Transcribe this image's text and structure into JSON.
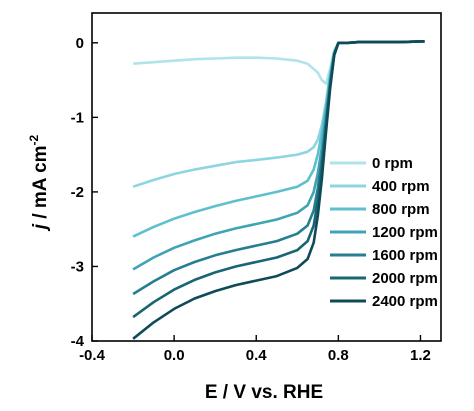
{
  "chart_data": {
    "type": "line",
    "xlabel": "E / V vs. RHE",
    "ylabel_main": "j / mA cm",
    "ylabel_sup": "-2",
    "xlim": [
      -0.4,
      1.3
    ],
    "ylim": [
      -4.0,
      0.4
    ],
    "x_ticks": [
      -0.4,
      0.0,
      0.4,
      0.8,
      1.2
    ],
    "x_tick_labels": [
      "-0.4",
      "0.0",
      "0.4",
      "0.8",
      "1.2"
    ],
    "y_ticks": [
      0,
      -1,
      -2,
      -3,
      -4
    ],
    "y_tick_labels": [
      "0",
      "-1",
      "-2",
      "-3",
      "-4"
    ],
    "legend_position": "bottom-right",
    "series": [
      {
        "name": "0 rpm",
        "color": "#b3e3ea",
        "x": [
          -0.2,
          -0.1,
          0.0,
          0.1,
          0.2,
          0.3,
          0.4,
          0.5,
          0.6,
          0.65,
          0.7,
          0.72,
          0.74,
          0.76,
          0.78,
          0.8,
          0.85,
          0.9,
          1.0,
          1.1,
          1.22
        ],
        "y": [
          -0.28,
          -0.26,
          -0.24,
          -0.22,
          -0.21,
          -0.2,
          -0.2,
          -0.21,
          -0.24,
          -0.28,
          -0.4,
          -0.5,
          -0.55,
          -0.35,
          -0.1,
          0.0,
          0.0,
          0.01,
          0.01,
          0.01,
          0.02
        ]
      },
      {
        "name": "400 rpm",
        "color": "#8dd5e1",
        "x": [
          -0.2,
          -0.1,
          0.0,
          0.1,
          0.2,
          0.3,
          0.4,
          0.5,
          0.6,
          0.65,
          0.68,
          0.7,
          0.72,
          0.74,
          0.76,
          0.78,
          0.8,
          0.85,
          0.9,
          1.0,
          1.1,
          1.22
        ],
        "y": [
          -1.93,
          -1.84,
          -1.76,
          -1.7,
          -1.65,
          -1.6,
          -1.57,
          -1.54,
          -1.5,
          -1.46,
          -1.4,
          -1.3,
          -1.1,
          -0.8,
          -0.4,
          -0.12,
          0.0,
          0.0,
          0.01,
          0.01,
          0.01,
          0.02
        ]
      },
      {
        "name": "800 rpm",
        "color": "#5ec0cf",
        "x": [
          -0.2,
          -0.1,
          0.0,
          0.1,
          0.2,
          0.3,
          0.4,
          0.5,
          0.6,
          0.65,
          0.68,
          0.7,
          0.72,
          0.74,
          0.76,
          0.78,
          0.8,
          0.85,
          0.9,
          1.0,
          1.1,
          1.22
        ],
        "y": [
          -2.6,
          -2.47,
          -2.36,
          -2.27,
          -2.19,
          -2.12,
          -2.06,
          -2.0,
          -1.93,
          -1.85,
          -1.7,
          -1.5,
          -1.2,
          -0.85,
          -0.45,
          -0.13,
          0.0,
          0.0,
          0.01,
          0.01,
          0.01,
          0.02
        ]
      },
      {
        "name": "1200 rpm",
        "color": "#3fa4b6",
        "x": [
          -0.2,
          -0.1,
          0.0,
          0.1,
          0.2,
          0.3,
          0.4,
          0.5,
          0.6,
          0.65,
          0.68,
          0.7,
          0.72,
          0.74,
          0.76,
          0.78,
          0.8,
          0.85,
          0.9,
          1.0,
          1.1,
          1.22
        ],
        "y": [
          -3.04,
          -2.88,
          -2.75,
          -2.65,
          -2.56,
          -2.49,
          -2.43,
          -2.37,
          -2.28,
          -2.18,
          -2.0,
          -1.75,
          -1.4,
          -0.95,
          -0.5,
          -0.14,
          0.0,
          0.0,
          0.01,
          0.01,
          0.01,
          0.02
        ]
      },
      {
        "name": "1600 rpm",
        "color": "#267e90",
        "x": [
          -0.2,
          -0.1,
          0.0,
          0.1,
          0.2,
          0.3,
          0.4,
          0.5,
          0.6,
          0.65,
          0.68,
          0.7,
          0.72,
          0.74,
          0.76,
          0.78,
          0.8,
          0.85,
          0.9,
          1.0,
          1.1,
          1.22
        ],
        "y": [
          -3.37,
          -3.2,
          -3.05,
          -2.94,
          -2.85,
          -2.78,
          -2.72,
          -2.66,
          -2.56,
          -2.45,
          -2.25,
          -1.95,
          -1.55,
          -1.05,
          -0.55,
          -0.15,
          0.0,
          0.0,
          0.01,
          0.01,
          0.01,
          0.02
        ]
      },
      {
        "name": "2000 rpm",
        "color": "#1a6574",
        "x": [
          -0.2,
          -0.1,
          0.0,
          0.1,
          0.2,
          0.3,
          0.4,
          0.5,
          0.6,
          0.65,
          0.68,
          0.7,
          0.72,
          0.74,
          0.76,
          0.78,
          0.8,
          0.85,
          0.9,
          1.0,
          1.1,
          1.22
        ],
        "y": [
          -3.68,
          -3.48,
          -3.31,
          -3.18,
          -3.08,
          -3.0,
          -2.94,
          -2.88,
          -2.78,
          -2.66,
          -2.45,
          -2.12,
          -1.68,
          -1.12,
          -0.58,
          -0.16,
          0.0,
          0.0,
          0.01,
          0.01,
          0.01,
          0.02
        ]
      },
      {
        "name": "2400 rpm",
        "color": "#0f4b57",
        "x": [
          -0.2,
          -0.1,
          0.0,
          0.1,
          0.2,
          0.3,
          0.4,
          0.5,
          0.6,
          0.65,
          0.68,
          0.7,
          0.72,
          0.74,
          0.76,
          0.78,
          0.8,
          0.85,
          0.9,
          1.0,
          1.1,
          1.22
        ],
        "y": [
          -3.97,
          -3.75,
          -3.57,
          -3.43,
          -3.33,
          -3.25,
          -3.19,
          -3.13,
          -3.02,
          -2.9,
          -2.68,
          -2.32,
          -1.82,
          -1.2,
          -0.62,
          -0.17,
          0.0,
          0.0,
          0.01,
          0.01,
          0.01,
          0.02
        ]
      }
    ]
  }
}
